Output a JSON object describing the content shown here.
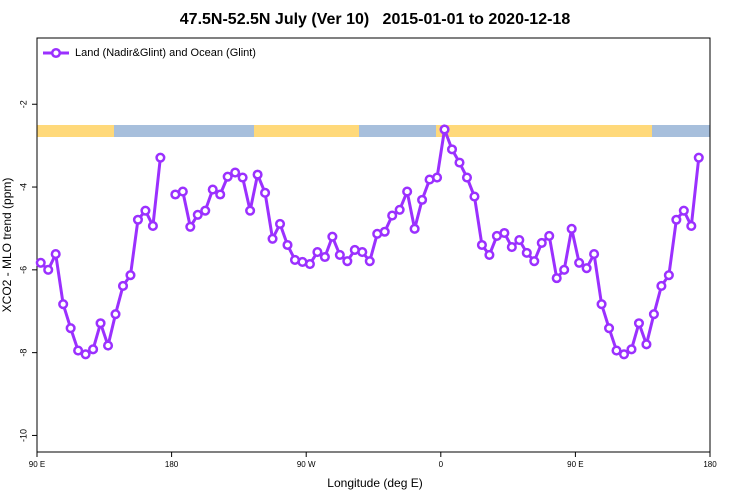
{
  "chart_data": {
    "type": "line",
    "title": "47.5N-52.5N July (Ver 10)   2015-01-01 to 2020-12-18",
    "x_label": "Longitude (deg E)",
    "y_label": "XCO2 - MLO trend (ppm)",
    "xlim": [
      90,
      540
    ],
    "ylim": [
      -10.4,
      -0.4
    ],
    "xticks": [
      {
        "value": 90,
        "label": "90 E"
      },
      180,
      {
        "value": 270,
        "label": "90 W"
      },
      {
        "value": 360,
        "label": "0"
      },
      {
        "value": 450,
        "label": "90 E"
      },
      {
        "value": 540,
        "label": "180"
      }
    ],
    "yticks": [
      -2,
      -4,
      -6,
      -8,
      -10
    ],
    "legend": "top-left",
    "x": [
      92.5,
      97.5,
      102.5,
      107.5,
      112.5,
      117.5,
      122.5,
      127.5,
      132.5,
      137.5,
      142.5,
      147.5,
      152.5,
      157.5,
      162.5,
      167.5,
      172.5,
      177.5,
      182.5,
      187.5,
      192.5,
      197.5,
      202.5,
      207.5,
      212.5,
      217.5,
      222.5,
      227.5,
      232.5,
      237.5,
      242.5,
      247.5,
      252.5,
      257.5,
      262.5,
      267.5,
      272.5,
      277.5,
      282.5,
      287.5,
      292.5,
      297.5,
      302.5,
      307.5,
      312.5,
      317.5,
      322.5,
      327.5,
      332.5,
      337.5,
      342.5,
      347.5,
      352.5,
      357.5,
      362.5,
      367.5,
      372.5,
      377.5,
      382.5,
      387.5,
      392.5,
      397.5,
      402.5,
      407.5,
      412.5,
      417.5,
      422.5,
      427.5,
      432.5,
      437.5,
      442.5,
      447.5,
      452.5,
      457.5,
      462.5,
      467.5,
      472.5,
      477.5,
      482.5,
      487.5,
      492.5,
      497.5,
      502.5,
      507.5,
      512.5,
      517.5,
      522.5,
      527.5,
      532.5
    ],
    "series": [
      {
        "name": "Land (Nadir&Glint) and Ocean (Glint)",
        "color": "#9b30ff",
        "values": [
          -5.83,
          -6.0,
          -5.62,
          -6.83,
          -7.41,
          -7.95,
          -8.04,
          -7.92,
          -7.29,
          -7.83,
          -7.07,
          -6.39,
          -6.13,
          -4.79,
          -4.57,
          -4.94,
          -3.29,
          null,
          -4.18,
          -4.11,
          -4.96,
          -4.67,
          -4.57,
          -4.06,
          -4.18,
          -3.75,
          -3.65,
          -3.77,
          -4.57,
          -3.7,
          -4.14,
          -5.25,
          -4.89,
          -5.4,
          -5.76,
          -5.81,
          -5.86,
          -5.57,
          -5.69,
          -5.2,
          -5.64,
          -5.79,
          -5.52,
          -5.57,
          -5.79,
          -5.13,
          -5.08,
          -4.69,
          -4.55,
          -4.11,
          -5.01,
          -4.31,
          -3.82,
          -3.77,
          -2.61,
          -3.09,
          -3.41,
          -3.77,
          -4.23,
          -5.4,
          -5.64,
          -5.18,
          -5.11,
          -5.45,
          -5.28,
          -5.59,
          -5.79,
          -5.35,
          -5.18,
          -6.2,
          -6.0,
          -5.01,
          -5.83,
          -5.96,
          -5.62,
          -6.83,
          -7.41,
          -7.95,
          -8.04,
          -7.92,
          -7.29,
          -7.8,
          -7.07,
          -6.39,
          -6.13,
          -4.79,
          -4.57,
          -4.94,
          -3.29
        ]
      }
    ]
  }
}
